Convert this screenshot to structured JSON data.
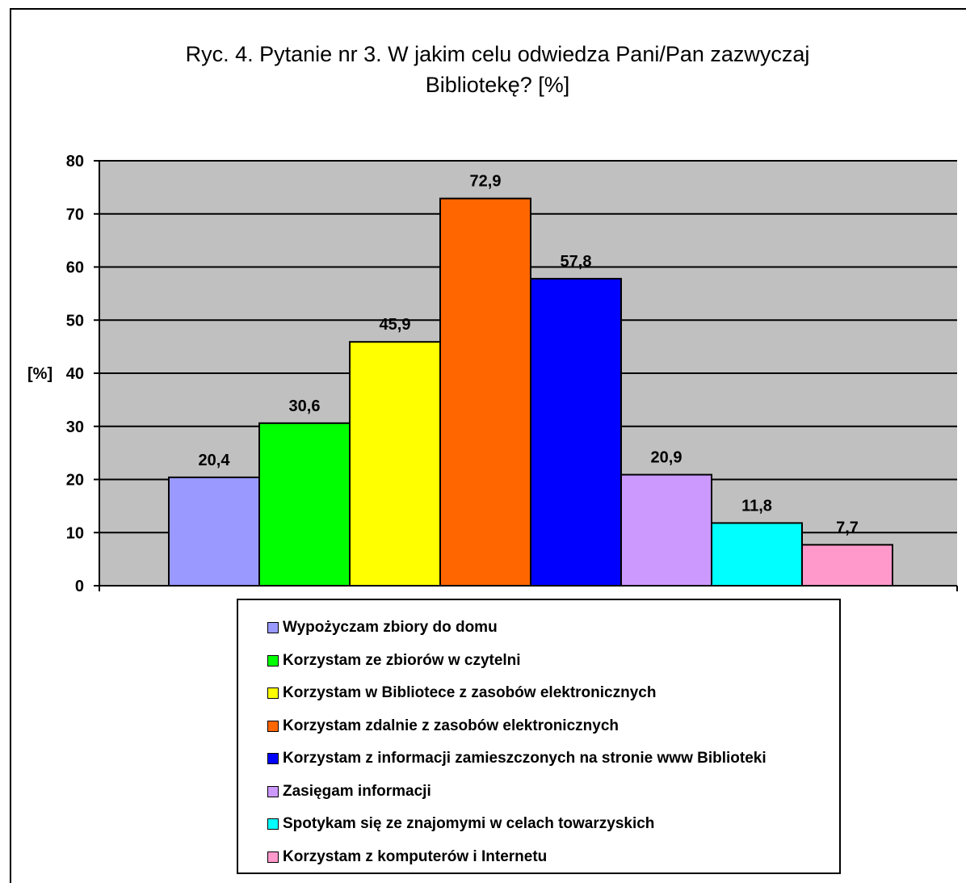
{
  "chart_data": {
    "type": "bar",
    "title": "Ryc. 4. Pytanie nr 3. W jakim celu odwiedza Pani/Pan zazwyczaj Bibliotekę? [%]",
    "title_lines": [
      "Ryc. 4. Pytanie nr 3. W jakim celu odwiedza Pani/Pan zazwyczaj",
      "Bibliotekę? [%]"
    ],
    "ylabel": "[%]",
    "xlabel": "",
    "ylim": [
      0,
      80
    ],
    "yticks": [
      0,
      10,
      20,
      30,
      40,
      50,
      60,
      70,
      80
    ],
    "grid": true,
    "plot_background": "#c0c0c0",
    "legend_position": "bottom",
    "series": [
      {
        "name": "Wypożyczam zbiory do domu",
        "value": 20.4,
        "label": "20,4",
        "color": "#9999ff"
      },
      {
        "name": "Korzystam ze zbiorów w czytelni",
        "value": 30.6,
        "label": "30,6",
        "color": "#00ff00"
      },
      {
        "name": "Korzystam w Bibliotece z zasobów elektronicznych",
        "value": 45.9,
        "label": "45,9",
        "color": "#ffff00"
      },
      {
        "name": "Korzystam zdalnie z zasobów elektronicznych",
        "value": 72.9,
        "label": "72,9",
        "color": "#ff6600"
      },
      {
        "name": "Korzystam z informacji zamieszczonych na stronie www Biblioteki",
        "value": 57.8,
        "label": "57,8",
        "color": "#0000ff"
      },
      {
        "name": "Zasięgam informacji",
        "value": 20.9,
        "label": "20,9",
        "color": "#cc99ff"
      },
      {
        "name": "Spotykam się ze znajomymi w celach towarzyskich",
        "value": 11.8,
        "label": "11,8",
        "color": "#00ffff"
      },
      {
        "name": "Korzystam z komputerów i Internetu",
        "value": 7.7,
        "label": "7,7",
        "color": "#ff99cc"
      }
    ]
  }
}
